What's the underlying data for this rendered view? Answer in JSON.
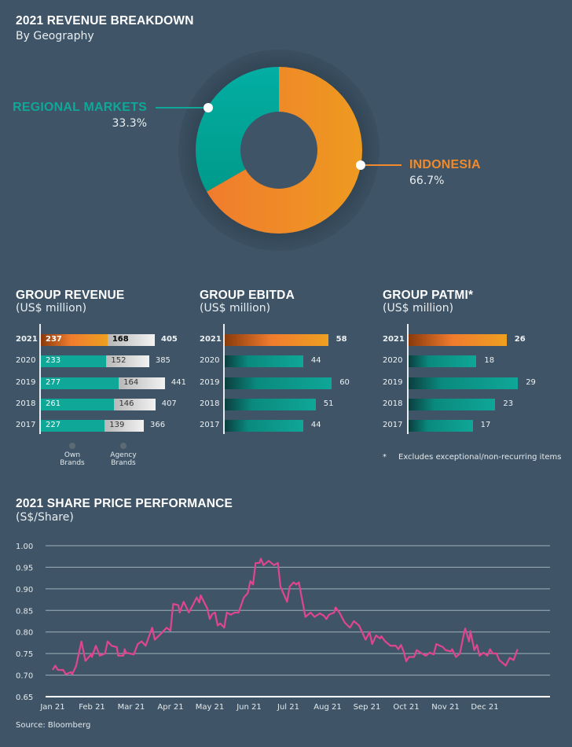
{
  "colors": {
    "background": "#3f5567",
    "teal": "#0fa797",
    "orange": "#f08a2c",
    "grey_bar": "#d9d9d9",
    "line": "#e0468f"
  },
  "donut": {
    "title": "2021 REVENUE BREAKDOWN",
    "subtitle": "By Geography",
    "chart_type": "donut",
    "segments": [
      {
        "label": "REGIONAL MARKETS",
        "value_text": "33.3%",
        "value": 33.3,
        "color": "#0fa797"
      },
      {
        "label": "INDONESIA",
        "value_text": "66.7%",
        "value": 66.7,
        "color": "#f08a2c"
      }
    ]
  },
  "chart_data": [
    {
      "type": "bar",
      "orientation": "horizontal",
      "stacked": true,
      "title": "GROUP REVENUE",
      "subtitle": "(US$ million)",
      "categories": [
        "2021",
        "2020",
        "2019",
        "2018",
        "2017"
      ],
      "series": [
        {
          "name": "Own Brands",
          "values": [
            237,
            233,
            277,
            261,
            227
          ]
        },
        {
          "name": "Agency Brands",
          "values": [
            168,
            152,
            164,
            146,
            139
          ]
        }
      ],
      "totals": [
        405,
        385,
        441,
        407,
        366
      ],
      "legend_placement": "bottom"
    },
    {
      "type": "bar",
      "orientation": "horizontal",
      "title": "GROUP EBITDA",
      "subtitle": "(US$ million)",
      "categories": [
        "2021",
        "2020",
        "2019",
        "2018",
        "2017"
      ],
      "values": [
        58,
        44,
        60,
        51,
        44
      ]
    },
    {
      "type": "bar",
      "orientation": "horizontal",
      "title": "GROUP PATMI*",
      "subtitle": "(US$ million)",
      "categories": [
        "2021",
        "2020",
        "2019",
        "2018",
        "2017"
      ],
      "values": [
        26,
        18,
        29,
        23,
        17
      ],
      "footnote_mark": "*",
      "footnote": "Excludes exceptional/non-recurring items"
    },
    {
      "type": "line",
      "title": "2021 SHARE PRICE PERFORMANCE",
      "subtitle": "(S$/Share)",
      "ylim": [
        0.65,
        1.0
      ],
      "yticks": [
        "1.00",
        "0.95",
        "0.90",
        "0.85",
        "0.80",
        "0.75",
        "0.70",
        "0.65"
      ],
      "xticks": [
        "Jan 21",
        "Feb 21",
        "Mar 21",
        "Apr 21",
        "May 21",
        "Jun 21",
        "Jul 21",
        "Aug 21",
        "Sep 21",
        "Oct 21",
        "Nov 21",
        "Dec 21"
      ],
      "grid": true,
      "source": "Source: Bloomberg",
      "points": [
        [
          "2021-01-01",
          0.712
        ],
        [
          "2021-01-03",
          0.722
        ],
        [
          "2021-01-05",
          0.712
        ],
        [
          "2021-01-09",
          0.712
        ],
        [
          "2021-01-11",
          0.702
        ],
        [
          "2021-01-15",
          0.707
        ],
        [
          "2021-01-16",
          0.702
        ],
        [
          "2021-01-19",
          0.722
        ],
        [
          "2021-01-23",
          0.778
        ],
        [
          "2021-01-26",
          0.733
        ],
        [
          "2021-01-31",
          0.75
        ],
        [
          "2021-02-01",
          0.742
        ],
        [
          "2021-02-04",
          0.768
        ],
        [
          "2021-02-07",
          0.745
        ],
        [
          "2021-02-11",
          0.75
        ],
        [
          "2021-02-13",
          0.778
        ],
        [
          "2021-02-16",
          0.768
        ],
        [
          "2021-02-20",
          0.765
        ],
        [
          "2021-02-21",
          0.745
        ],
        [
          "2021-02-25",
          0.745
        ],
        [
          "2021-02-26",
          0.76
        ],
        [
          "2021-02-27",
          0.752
        ],
        [
          "2021-03-03",
          0.748
        ],
        [
          "2021-03-06",
          0.772
        ],
        [
          "2021-03-09",
          0.778
        ],
        [
          "2021-03-12",
          0.768
        ],
        [
          "2021-03-17",
          0.81
        ],
        [
          "2021-03-19",
          0.782
        ],
        [
          "2021-03-25",
          0.8
        ],
        [
          "2021-03-28",
          0.81
        ],
        [
          "2021-03-31",
          0.803
        ],
        [
          "2021-04-03",
          0.865
        ],
        [
          "2021-04-07",
          0.862
        ],
        [
          "2021-04-08",
          0.845
        ],
        [
          "2021-04-11",
          0.87
        ],
        [
          "2021-04-15",
          0.845
        ],
        [
          "2021-04-18",
          0.862
        ],
        [
          "2021-04-21",
          0.88
        ],
        [
          "2021-04-23",
          0.868
        ],
        [
          "2021-04-24",
          0.885
        ],
        [
          "2021-04-29",
          0.855
        ],
        [
          "2021-05-01",
          0.83
        ],
        [
          "2021-05-03",
          0.842
        ],
        [
          "2021-05-05",
          0.845
        ],
        [
          "2021-05-07",
          0.815
        ],
        [
          "2021-05-09",
          0.82
        ],
        [
          "2021-05-12",
          0.81
        ],
        [
          "2021-05-14",
          0.845
        ],
        [
          "2021-05-17",
          0.84
        ],
        [
          "2021-05-20",
          0.845
        ],
        [
          "2021-05-23",
          0.845
        ],
        [
          "2021-05-27",
          0.88
        ],
        [
          "2021-05-30",
          0.89
        ],
        [
          "2021-06-02",
          0.918
        ],
        [
          "2021-06-04",
          0.91
        ],
        [
          "2021-06-06",
          0.96
        ],
        [
          "2021-06-09",
          0.96
        ],
        [
          "2021-06-10",
          0.97
        ],
        [
          "2021-06-12",
          0.955
        ],
        [
          "2021-06-16",
          0.965
        ],
        [
          "2021-06-20",
          0.955
        ],
        [
          "2021-06-23",
          0.96
        ],
        [
          "2021-06-25",
          0.905
        ],
        [
          "2021-06-30",
          0.87
        ],
        [
          "2021-07-02",
          0.905
        ],
        [
          "2021-07-05",
          0.915
        ],
        [
          "2021-07-07",
          0.91
        ],
        [
          "2021-07-09",
          0.915
        ],
        [
          "2021-07-14",
          0.835
        ],
        [
          "2021-07-18",
          0.845
        ],
        [
          "2021-07-21",
          0.835
        ],
        [
          "2021-07-25",
          0.843
        ],
        [
          "2021-07-28",
          0.838
        ],
        [
          "2021-07-30",
          0.83
        ],
        [
          "2021-08-02",
          0.84
        ],
        [
          "2021-08-06",
          0.845
        ],
        [
          "2021-08-07",
          0.857
        ],
        [
          "2021-08-10",
          0.845
        ],
        [
          "2021-08-14",
          0.822
        ],
        [
          "2021-08-18",
          0.81
        ],
        [
          "2021-08-21",
          0.825
        ],
        [
          "2021-08-25",
          0.815
        ],
        [
          "2021-08-30",
          0.782
        ],
        [
          "2021-09-03",
          0.8
        ],
        [
          "2021-09-05",
          0.772
        ],
        [
          "2021-09-08",
          0.792
        ],
        [
          "2021-09-11",
          0.785
        ],
        [
          "2021-09-12",
          0.79
        ],
        [
          "2021-09-15",
          0.778
        ],
        [
          "2021-09-19",
          0.768
        ],
        [
          "2021-09-23",
          0.768
        ],
        [
          "2021-09-25",
          0.76
        ],
        [
          "2021-09-27",
          0.77
        ],
        [
          "2021-09-29",
          0.755
        ],
        [
          "2021-10-01",
          0.732
        ],
        [
          "2021-10-03",
          0.742
        ],
        [
          "2021-10-07",
          0.742
        ],
        [
          "2021-10-09",
          0.758
        ],
        [
          "2021-10-13",
          0.75
        ],
        [
          "2021-10-16",
          0.745
        ],
        [
          "2021-10-19",
          0.752
        ],
        [
          "2021-10-22",
          0.748
        ],
        [
          "2021-10-24",
          0.772
        ],
        [
          "2021-10-29",
          0.765
        ],
        [
          "2021-11-01",
          0.758
        ],
        [
          "2021-11-05",
          0.755
        ],
        [
          "2021-11-06",
          0.76
        ],
        [
          "2021-11-09",
          0.742
        ],
        [
          "2021-11-12",
          0.75
        ],
        [
          "2021-11-15",
          0.795
        ],
        [
          "2021-11-16",
          0.808
        ],
        [
          "2021-11-19",
          0.778
        ],
        [
          "2021-11-20",
          0.802
        ],
        [
          "2021-11-23",
          0.758
        ],
        [
          "2021-11-25",
          0.77
        ],
        [
          "2021-11-27",
          0.745
        ],
        [
          "2021-11-30",
          0.752
        ],
        [
          "2021-12-03",
          0.745
        ],
        [
          "2021-12-05",
          0.76
        ],
        [
          "2021-12-07",
          0.75
        ],
        [
          "2021-12-10",
          0.75
        ],
        [
          "2021-12-12",
          0.735
        ],
        [
          "2021-12-17",
          0.722
        ],
        [
          "2021-12-20",
          0.74
        ],
        [
          "2021-12-23",
          0.735
        ],
        [
          "2021-12-26",
          0.76
        ]
      ]
    }
  ]
}
